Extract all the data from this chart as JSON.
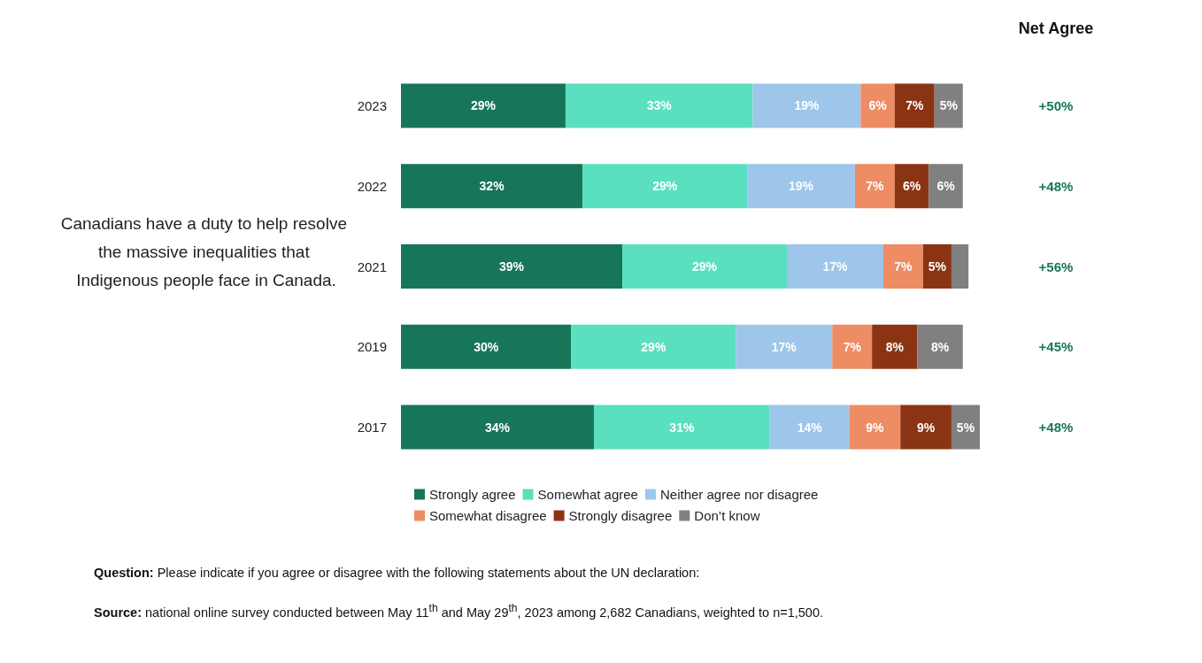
{
  "chart_data": {
    "type": "bar",
    "orientation": "horizontal",
    "stacked": true,
    "data_labels": false,
    "tick_labels": "y",
    "legend": "bottom",
    "grid": false,
    "ylabel": "Canadians have a duty to help resolve the massive inequalities that Indigenous people face in Canada.",
    "y2label": "Net Agree",
    "categories": [
      "2023",
      "2022",
      "2021",
      "2019",
      "2017"
    ],
    "xlim": [
      0,
      102
    ],
    "series": [
      {
        "name": "Strongly agree",
        "color": "#17765a",
        "values": [
          29,
          32,
          39,
          30,
          34
        ],
        "value_labels": [
          "29%",
          "32%",
          "39%",
          "30%",
          "34%"
        ]
      },
      {
        "name": "Somewhat agree",
        "color": "#5ae0bf",
        "values": [
          33,
          29,
          29,
          29,
          31
        ],
        "value_labels": [
          "33%",
          "29%",
          "29%",
          "29%",
          "31%"
        ]
      },
      {
        "name": "Neither agree nor disagree",
        "color": "#9dc6ea",
        "values": [
          19,
          19,
          17,
          17,
          14
        ],
        "value_labels": [
          "19%",
          "19%",
          "17%",
          "17%",
          "14%"
        ]
      },
      {
        "name": "Somewhat disagree",
        "color": "#ee8c63",
        "values": [
          6,
          7,
          7,
          7,
          9
        ],
        "value_labels": [
          "6%",
          "7%",
          "7%",
          "7%",
          "9%"
        ]
      },
      {
        "name": "Strongly disagree",
        "color": "#8b3413",
        "values": [
          7,
          6,
          5,
          8,
          9
        ],
        "value_labels": [
          "7%",
          "6%",
          "5%",
          "8%",
          "9%"
        ]
      },
      {
        "name": "Don’t know",
        "color": "#808080",
        "values": [
          5,
          6,
          3,
          8,
          5
        ],
        "value_labels": [
          "5%",
          "6%",
          null,
          "8%",
          "5%"
        ]
      }
    ],
    "annotations": [
      "+50%",
      "+48%",
      "+56%",
      "+45%",
      "+48%",
      "Question: Please indicate if you agree or disagree with the following statements about the UN declaration:",
      "Source: national online survey conducted between May 11$^{th}$ and May 29$^{th}$, 2023 among 2,682 Canadians, weighted to n=1,500."
    ]
  }
}
